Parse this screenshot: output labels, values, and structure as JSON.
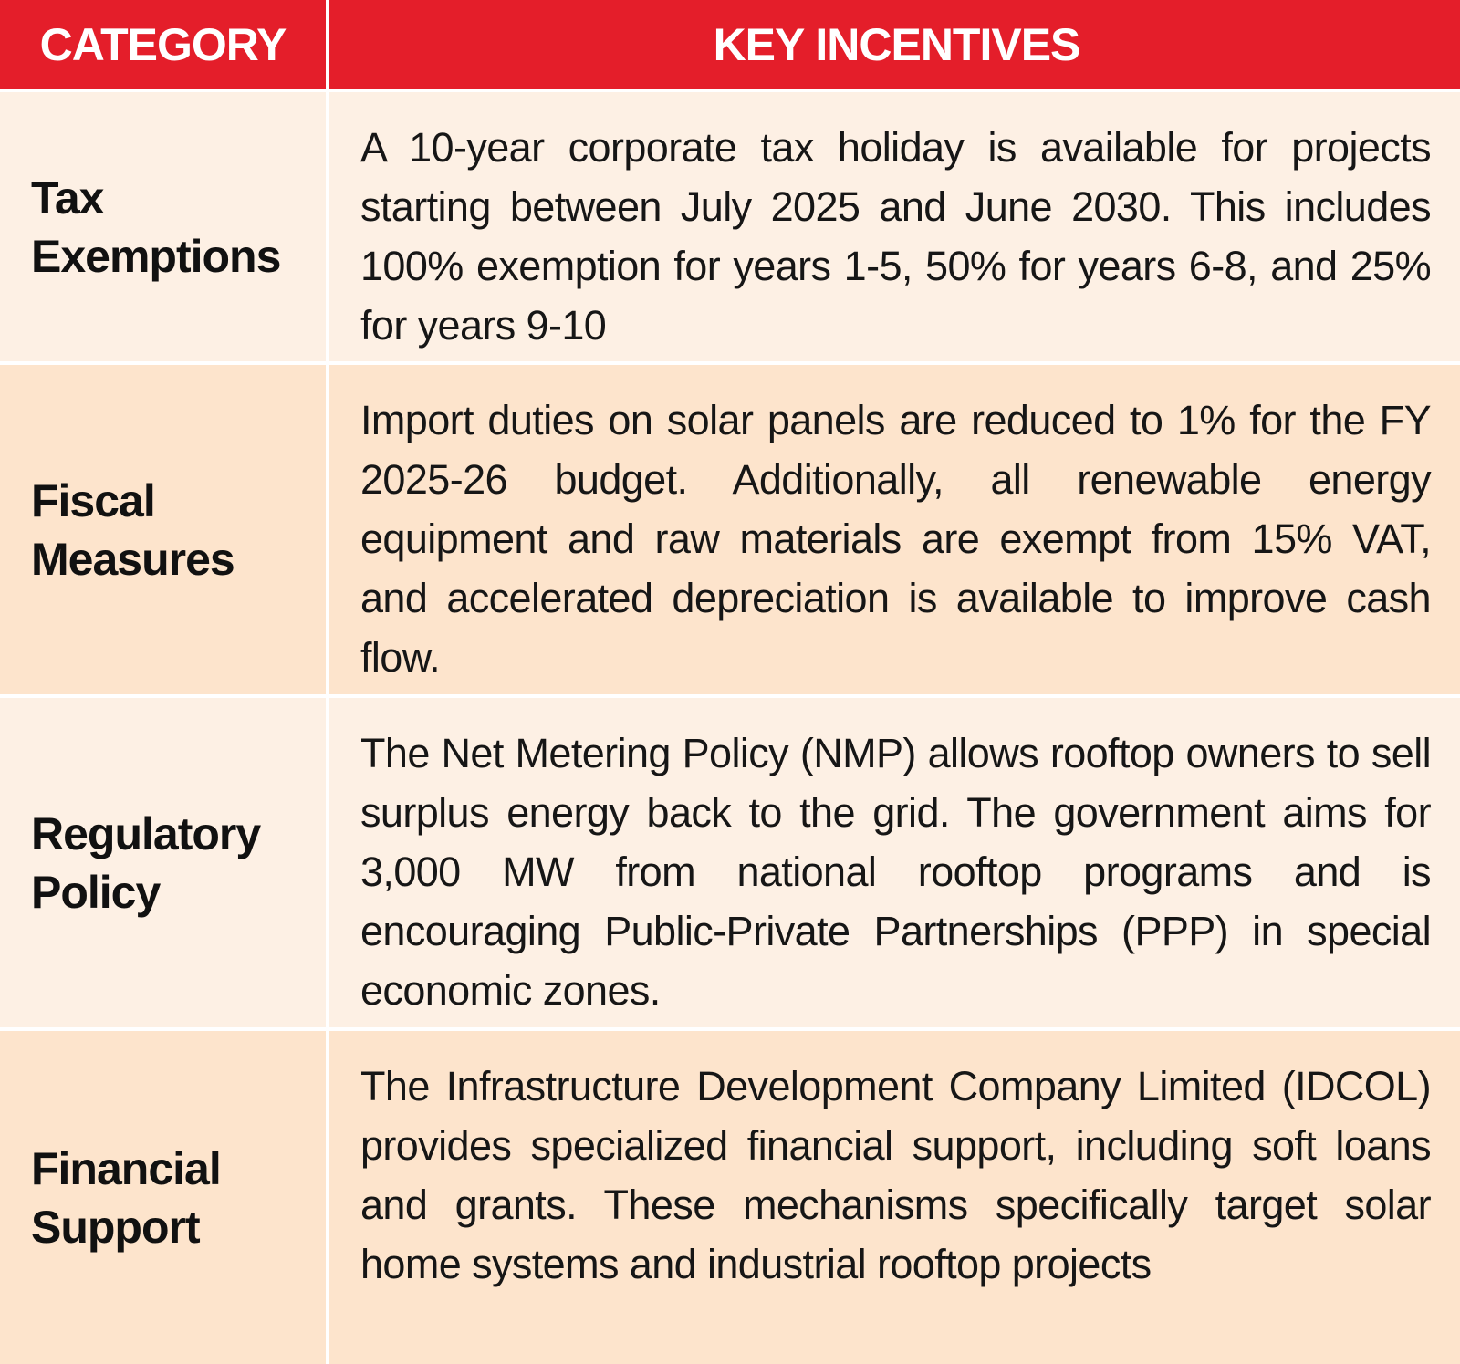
{
  "header": {
    "category": "CATEGORY",
    "incentives": "KEY INCENTIVES"
  },
  "rows": [
    {
      "category": "Tax Exemptions",
      "incentives": "A 10-year corporate tax holiday is available for projects starting between July 2025 and June 2030. This includes 100% exemption for years 1-5, 50% for years 6-8, and 25% for years 9-10"
    },
    {
      "category": "Fiscal Measures",
      "incentives": "Import duties on solar panels are reduced to 1% for the FY 2025-26 budget. Additionally, all renewable energy equipment and raw materials are exempt from 15% VAT, and accelerated depreciation is available to improve cash flow."
    },
    {
      "category": "Regulatory Policy",
      "incentives": "The Net Metering Policy (NMP) allows rooftop owners to sell surplus energy back to the grid. The government aims for 3,000 MW from national rooftop programs and is encouraging Public-Private Partnerships (PPP) in special economic zones."
    },
    {
      "category": "Financial Support",
      "incentives": "The Infrastructure Development Company Limited (IDCOL) provides specialized financial support, including soft loans and grants. These mechanisms specifically target solar home systems and industrial rooftop projects"
    }
  ],
  "colors": {
    "header_bg": "#e41e2a",
    "row_light": "#fdf0e4",
    "row_dark": "#fde4cc"
  }
}
